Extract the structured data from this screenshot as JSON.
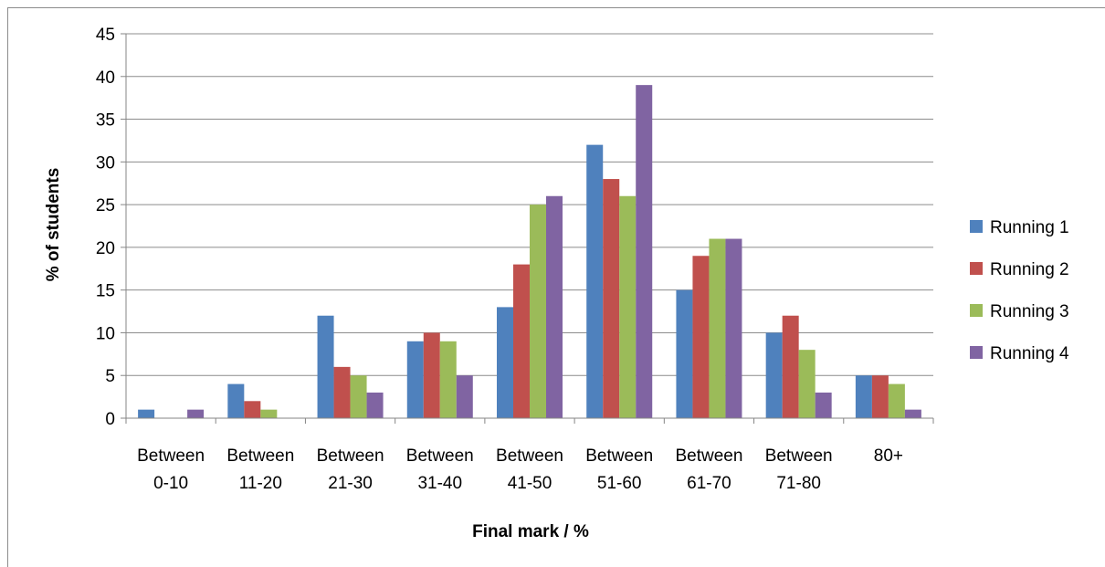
{
  "chart_data": {
    "type": "bar",
    "title": "",
    "xlabel": "Final mark / %",
    "ylabel": "% of students",
    "ylim": [
      0,
      45
    ],
    "yticks": [
      0,
      5,
      10,
      15,
      20,
      25,
      30,
      35,
      40,
      45
    ],
    "grid": true,
    "legend_position": "right",
    "categories": [
      [
        "Between",
        "0-10"
      ],
      [
        "Between",
        "11-20"
      ],
      [
        "Between",
        "21-30"
      ],
      [
        "Between",
        "31-40"
      ],
      [
        "Between",
        "41-50"
      ],
      [
        "Between",
        "51-60"
      ],
      [
        "Between",
        "61-70"
      ],
      [
        "Between",
        "71-80"
      ],
      [
        "80+"
      ]
    ],
    "series": [
      {
        "name": "Running 1",
        "color": "#4f81bd",
        "values": [
          1,
          4,
          12,
          9,
          13,
          32,
          15,
          10,
          5
        ]
      },
      {
        "name": "Running 2",
        "color": "#c0504d",
        "values": [
          0,
          2,
          6,
          10,
          18,
          28,
          19,
          12,
          5
        ]
      },
      {
        "name": "Running 3",
        "color": "#9bbb59",
        "values": [
          0,
          1,
          5,
          9,
          25,
          26,
          21,
          8,
          4
        ]
      },
      {
        "name": "Running 4",
        "color": "#8064a2",
        "values": [
          1,
          0,
          3,
          5,
          26,
          39,
          21,
          3,
          1
        ]
      }
    ]
  }
}
